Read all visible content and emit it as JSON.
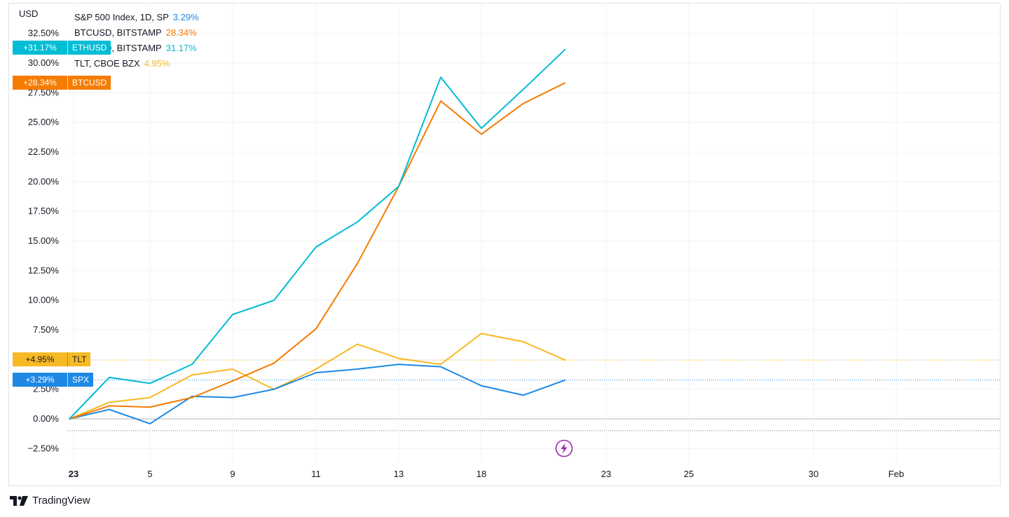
{
  "chart_data": {
    "type": "line",
    "currency_label": "USD",
    "x": [
      "2023-01-03",
      "2023-01-04",
      "2023-01-05",
      "2023-01-06",
      "2023-01-09",
      "2023-01-10",
      "2023-01-11",
      "2023-01-12",
      "2023-01-13",
      "2023-01-16",
      "2023-01-18",
      "2023-01-19",
      "2023-01-20"
    ],
    "series": [
      {
        "name": "ETHUSD",
        "legend": "ETHUSD, BITSTAMP",
        "last_label": "31.17%",
        "badge": "+31.17%",
        "color": "#00bcd4",
        "values": [
          0.0,
          3.5,
          3.0,
          4.6,
          8.8,
          10.0,
          14.5,
          16.6,
          19.6,
          28.8,
          24.5,
          27.8,
          31.17
        ]
      },
      {
        "name": "BTCUSD",
        "legend": "BTCUSD, BITSTAMP",
        "last_label": "28.34%",
        "badge": "+28.34%",
        "color": "#f57c00",
        "values": [
          0.0,
          1.1,
          1.0,
          1.8,
          3.2,
          4.7,
          7.6,
          13.1,
          19.6,
          26.8,
          24.0,
          26.6,
          28.34
        ]
      },
      {
        "name": "TLT",
        "legend": "TLT, CBOE BZX",
        "last_label": "4.95%",
        "badge": "+4.95%",
        "color": "#f7b924",
        "values": [
          0.0,
          1.4,
          1.8,
          3.7,
          4.2,
          2.5,
          4.2,
          6.3,
          5.1,
          4.6,
          7.2,
          6.5,
          4.95
        ]
      },
      {
        "name": "SPX",
        "legend": "S&P 500 Index, 1D, SP",
        "last_label": "3.29%",
        "badge": "+3.29%",
        "color": "#1e88e5",
        "values": [
          0.0,
          0.8,
          -0.4,
          1.9,
          1.8,
          2.5,
          3.9,
          4.2,
          4.6,
          4.4,
          2.8,
          2.0,
          3.29
        ]
      }
    ],
    "y_ticks": [
      "32.50%",
      "30.00%",
      "27.50%",
      "25.00%",
      "22.50%",
      "20.00%",
      "17.50%",
      "15.00%",
      "12.50%",
      "10.00%",
      "7.50%",
      "5.00%",
      "2.50%",
      "0.00%",
      "−2.50%"
    ],
    "x_ticks": [
      "23",
      "5",
      "9",
      "11",
      "13",
      "18",
      "23",
      "25",
      "30",
      "Feb"
    ],
    "ylim": [
      -3.5,
      35
    ],
    "grid": true,
    "legend_placement": "top-left"
  },
  "branding": {
    "name": "TradingView"
  },
  "icons": {
    "flash": "lightning-bolt-icon",
    "logo": "tradingview-logo-icon"
  }
}
